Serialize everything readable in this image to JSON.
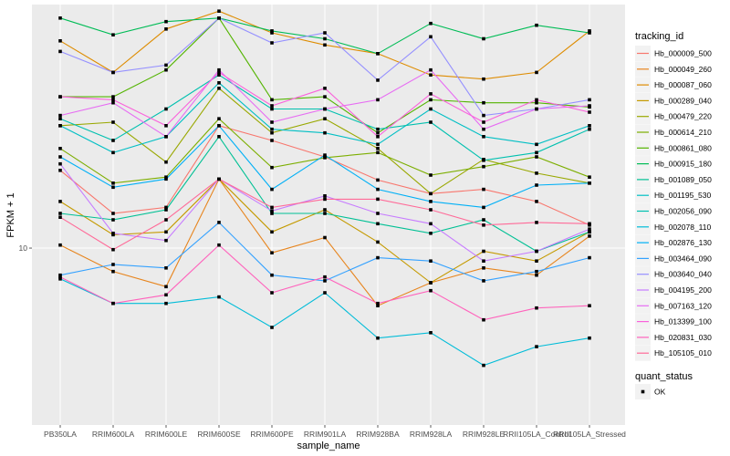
{
  "chart_data": {
    "type": "line",
    "title": "",
    "xlabel": "sample_name",
    "ylabel": "FPKM + 1",
    "y_scale": "log10",
    "ylim": [
      3.2,
      48
    ],
    "y_ticks": [
      10
    ],
    "y_tick_labels": [
      "10"
    ],
    "grid": true,
    "categories": [
      "PB350LA",
      "RRIM600LA",
      "RRIM600LE",
      "RRIM600SE",
      "RRIM600PE",
      "RRIM901LA",
      "RRIM928BA",
      "RRIM928LA",
      "RRIM928LE",
      "RRII105LA_Control",
      "RRII105LA_Stressed"
    ],
    "legend": {
      "title": "tracking_id",
      "placement": "right",
      "shape_legend_title": "quant_status",
      "shape_legend_entries": [
        "OK"
      ]
    },
    "series": [
      {
        "name": "Hb_000009_500",
        "color": "#F8766D",
        "values": [
          16.5,
          12.5,
          13.0,
          22.0,
          20.0,
          18.0,
          15.5,
          14.2,
          14.6,
          13.5,
          11.6
        ]
      },
      {
        "name": "Hb_000049_260",
        "color": "#E7851E",
        "values": [
          10.2,
          8.6,
          7.8,
          15.6,
          9.7,
          10.7,
          6.9,
          8.0,
          8.8,
          8.4,
          10.8
        ]
      },
      {
        "name": "Hb_000087_060",
        "color": "#DE8C00",
        "values": [
          38.0,
          31.0,
          41.0,
          46.0,
          40.0,
          37.0,
          35.0,
          30.5,
          29.7,
          31.0,
          40.5
        ]
      },
      {
        "name": "Hb_000289_040",
        "color": "#C49A00",
        "values": [
          13.5,
          10.9,
          11.1,
          15.6,
          11.1,
          12.8,
          10.4,
          8.0,
          9.8,
          9.2,
          11.1
        ]
      },
      {
        "name": "Hb_000479_220",
        "color": "#99A800",
        "values": [
          22.0,
          22.5,
          17.4,
          28.0,
          21.0,
          23.0,
          19.0,
          14.2,
          17.7,
          16.2,
          15.2
        ]
      },
      {
        "name": "Hb_000614_210",
        "color": "#7CAE00",
        "values": [
          19.0,
          15.2,
          15.8,
          23.0,
          16.8,
          17.9,
          18.5,
          16.0,
          16.9,
          18.0,
          15.8
        ]
      },
      {
        "name": "Hb_000861_080",
        "color": "#53B400",
        "values": [
          26.5,
          26.5,
          31.5,
          44.0,
          26.0,
          26.5,
          21.0,
          26.0,
          25.5,
          25.5,
          24.8
        ]
      },
      {
        "name": "Hb_000915_180",
        "color": "#00BC56",
        "values": [
          44.0,
          39.5,
          43.0,
          44.0,
          40.5,
          38.5,
          35.0,
          42.5,
          38.5,
          42.0,
          40.0
        ]
      },
      {
        "name": "Hb_001089_050",
        "color": "#00C094",
        "values": [
          12.5,
          12.0,
          12.8,
          20.5,
          12.5,
          12.5,
          11.7,
          11.0,
          12.0,
          9.8,
          11.1
        ]
      },
      {
        "name": "Hb_001195_530",
        "color": "#00BFC4",
        "values": [
          22.0,
          18.5,
          20.5,
          29.0,
          21.5,
          21.0,
          19.5,
          24.5,
          20.5,
          19.5,
          22.0
        ]
      },
      {
        "name": "Hb_002056_090",
        "color": "#00C0AF",
        "values": [
          23.0,
          20.0,
          24.5,
          30.5,
          24.5,
          24.5,
          21.5,
          22.5,
          17.6,
          18.5,
          21.5
        ]
      },
      {
        "name": "Hb_002078_110",
        "color": "#00BCD8",
        "values": [
          8.2,
          7.0,
          7.0,
          7.3,
          6.0,
          7.5,
          5.6,
          5.8,
          4.7,
          5.3,
          5.6
        ]
      },
      {
        "name": "Hb_002876_130",
        "color": "#00B0F6",
        "values": [
          18.0,
          14.8,
          15.6,
          22.0,
          14.6,
          18.2,
          14.6,
          13.5,
          13.0,
          15.0,
          15.2
        ]
      },
      {
        "name": "Hb_003464_090",
        "color": "#35A2FF",
        "values": [
          8.4,
          9.0,
          8.8,
          11.8,
          8.4,
          8.1,
          9.4,
          9.2,
          8.1,
          8.6,
          9.4
        ]
      },
      {
        "name": "Hb_003640_040",
        "color": "#9590FF",
        "values": [
          35.5,
          31.0,
          32.5,
          44.0,
          37.5,
          40.0,
          29.5,
          39.0,
          23.5,
          24.5,
          26.0
        ]
      },
      {
        "name": "Hb_004195_200",
        "color": "#C77CFF",
        "values": [
          17.2,
          11.0,
          10.5,
          15.6,
          12.7,
          14.0,
          12.5,
          11.7,
          9.2,
          9.8,
          11.3
        ]
      },
      {
        "name": "Hb_007163_120",
        "color": "#E76BF3",
        "values": [
          23.5,
          25.5,
          20.5,
          31.5,
          22.5,
          24.5,
          26.0,
          31.5,
          21.5,
          24.5,
          25.0
        ]
      },
      {
        "name": "Hb_013399_100",
        "color": "#FA62DB",
        "values": [
          26.5,
          26.0,
          22.0,
          31.0,
          25.0,
          28.0,
          20.5,
          27.0,
          22.5,
          26.0,
          24.0
        ]
      },
      {
        "name": "Hb_020831_030",
        "color": "#FF62BC",
        "values": [
          8.3,
          7.0,
          7.4,
          10.2,
          7.5,
          8.3,
          7.0,
          7.6,
          6.3,
          6.8,
          6.9
        ]
      },
      {
        "name": "Hb_105105_010",
        "color": "#FF6A98",
        "values": [
          12.2,
          9.9,
          12.0,
          15.6,
          13.0,
          13.7,
          13.7,
          12.8,
          11.6,
          11.8,
          11.7
        ]
      }
    ]
  }
}
